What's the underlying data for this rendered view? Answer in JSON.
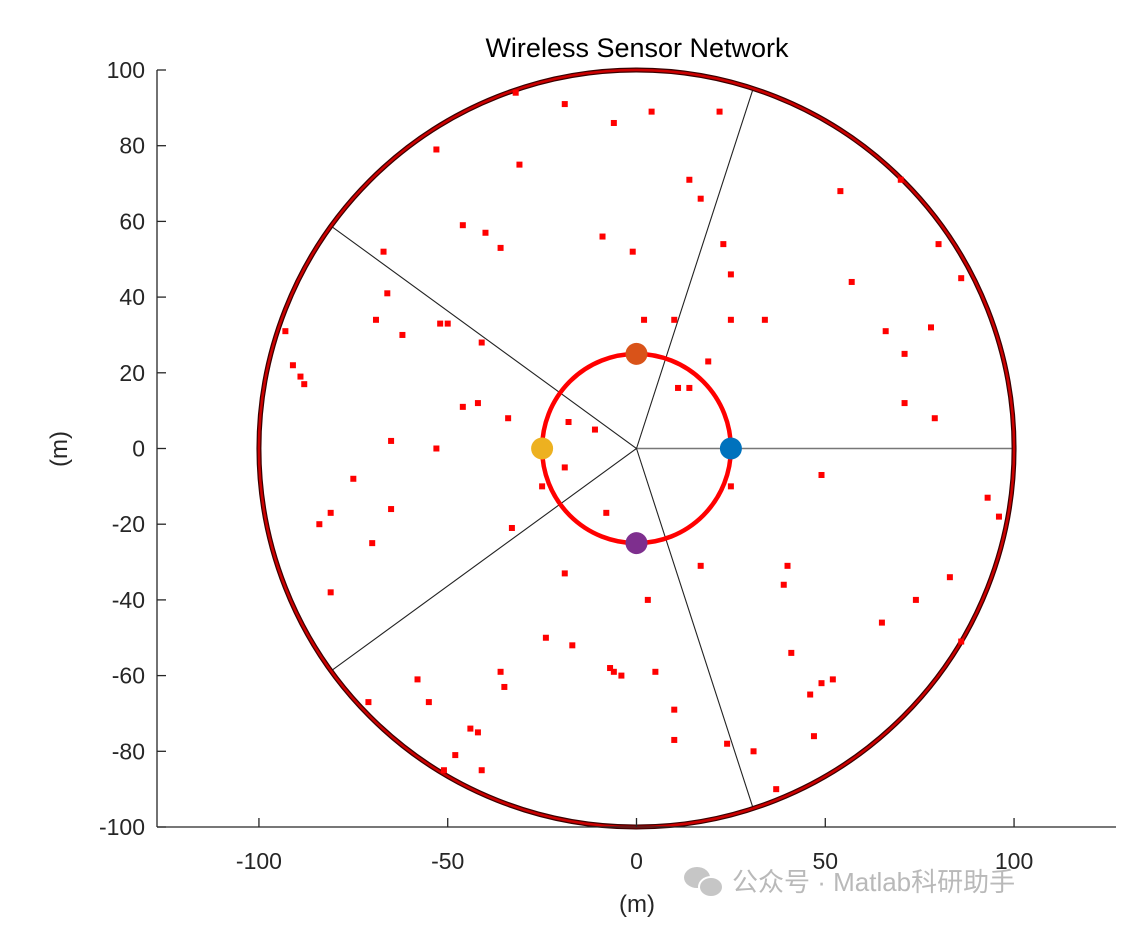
{
  "chart_data": {
    "type": "scatter",
    "title": "Wireless Sensor Network",
    "xlabel": "(m)",
    "ylabel": "(m)",
    "xlim": [
      -127,
      127
    ],
    "ylim": [
      -100,
      100
    ],
    "xticks": [
      -100,
      -50,
      0,
      50,
      100
    ],
    "yticks": [
      -100,
      -80,
      -60,
      -40,
      -20,
      0,
      20,
      40,
      60,
      80,
      100
    ],
    "grid": false,
    "field_circle": {
      "center": [
        0,
        0
      ],
      "radius": 100,
      "color": "#cc0000"
    },
    "inner_circle": {
      "center": [
        0,
        0
      ],
      "radius": 25,
      "color": "#ff0000"
    },
    "sector_boundaries_deg": [
      0,
      72,
      144,
      216,
      288
    ],
    "cluster_heads": [
      {
        "x": 25,
        "y": 0,
        "color": "#0072bd"
      },
      {
        "x": 0,
        "y": 25,
        "color": "#d95319"
      },
      {
        "x": -25,
        "y": 0,
        "color": "#edb120"
      },
      {
        "x": 0,
        "y": -25,
        "color": "#7e2f8e"
      }
    ],
    "sensor_color": "#ff0000",
    "sensors": [
      [
        -32,
        94
      ],
      [
        -19,
        91
      ],
      [
        4,
        89
      ],
      [
        -6,
        86
      ],
      [
        22,
        89
      ],
      [
        -53,
        79
      ],
      [
        -31,
        75
      ],
      [
        14,
        71
      ],
      [
        17,
        66
      ],
      [
        54,
        68
      ],
      [
        70,
        71
      ],
      [
        -46,
        59
      ],
      [
        -40,
        57
      ],
      [
        -36,
        53
      ],
      [
        -9,
        56
      ],
      [
        -1,
        52
      ],
      [
        23,
        54
      ],
      [
        25,
        46
      ],
      [
        80,
        54
      ],
      [
        86,
        45
      ],
      [
        57,
        44
      ],
      [
        -67,
        52
      ],
      [
        -66,
        41
      ],
      [
        -69,
        34
      ],
      [
        -62,
        30
      ],
      [
        -52,
        33
      ],
      [
        -50,
        33
      ],
      [
        -41,
        28
      ],
      [
        2,
        34
      ],
      [
        10,
        34
      ],
      [
        34,
        34
      ],
      [
        25,
        34
      ],
      [
        -93,
        31
      ],
      [
        -91,
        22
      ],
      [
        -89,
        19
      ],
      [
        -88,
        17
      ],
      [
        66,
        31
      ],
      [
        71,
        25
      ],
      [
        78,
        32
      ],
      [
        19,
        23
      ],
      [
        -46,
        11
      ],
      [
        -42,
        12
      ],
      [
        -34,
        8
      ],
      [
        -18,
        7
      ],
      [
        -11,
        5
      ],
      [
        11,
        16
      ],
      [
        14,
        16
      ],
      [
        71,
        12
      ],
      [
        79,
        8
      ],
      [
        -65,
        2
      ],
      [
        -53,
        0
      ],
      [
        -19,
        -5
      ],
      [
        -25,
        -10
      ],
      [
        25,
        -10
      ],
      [
        49,
        -7
      ],
      [
        93,
        -13
      ],
      [
        96,
        -18
      ],
      [
        -75,
        -8
      ],
      [
        -81,
        -17
      ],
      [
        -84,
        -20
      ],
      [
        -70,
        -25
      ],
      [
        -65,
        -16
      ],
      [
        -33,
        -21
      ],
      [
        -8,
        -17
      ],
      [
        17,
        -31
      ],
      [
        -19,
        -33
      ],
      [
        40,
        -31
      ],
      [
        39,
        -36
      ],
      [
        -81,
        -38
      ],
      [
        3,
        -40
      ],
      [
        74,
        -40
      ],
      [
        83,
        -34
      ],
      [
        86,
        -51
      ],
      [
        -24,
        -50
      ],
      [
        -17,
        -52
      ],
      [
        41,
        -54
      ],
      [
        65,
        -46
      ],
      [
        49,
        -62
      ],
      [
        52,
        -61
      ],
      [
        46,
        -65
      ],
      [
        -36,
        -59
      ],
      [
        -35,
        -63
      ],
      [
        -58,
        -61
      ],
      [
        -55,
        -67
      ],
      [
        -7,
        -58
      ],
      [
        -6,
        -59
      ],
      [
        -4,
        -60
      ],
      [
        5,
        -59
      ],
      [
        -71,
        -67
      ],
      [
        10,
        -69
      ],
      [
        -44,
        -74
      ],
      [
        -42,
        -75
      ],
      [
        -48,
        -81
      ],
      [
        -41,
        -85
      ],
      [
        -51,
        -85
      ],
      [
        10,
        -77
      ],
      [
        24,
        -78
      ],
      [
        31,
        -80
      ],
      [
        47,
        -76
      ],
      [
        37,
        -90
      ]
    ]
  },
  "watermark": {
    "text": "公众号 · Matlab科研助手"
  }
}
